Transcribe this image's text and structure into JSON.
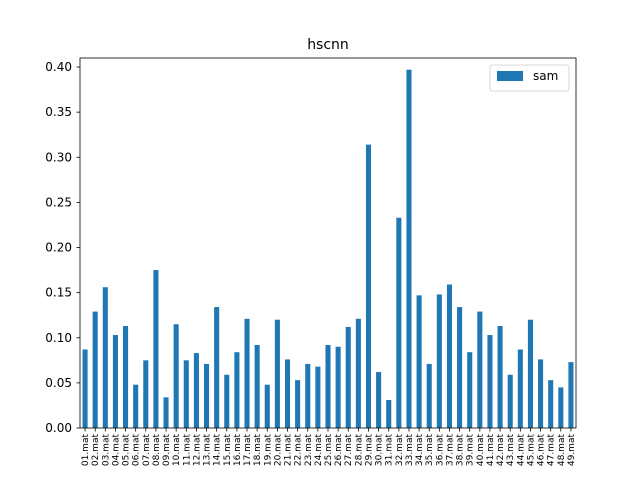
{
  "chart_data": {
    "type": "bar",
    "title": "hscnn",
    "xlabel": "",
    "ylabel": "",
    "ylim": [
      0,
      0.41
    ],
    "yticks": [
      0.0,
      0.05,
      0.1,
      0.15,
      0.2,
      0.25,
      0.3,
      0.35,
      0.4
    ],
    "ytick_labels": [
      "0.00",
      "0.05",
      "0.10",
      "0.15",
      "0.20",
      "0.25",
      "0.30",
      "0.35",
      "0.40"
    ],
    "grid": false,
    "legend_position": "top-right",
    "categories": [
      "01.mat",
      "02.mat",
      "03.mat",
      "04.mat",
      "05.mat",
      "06.mat",
      "07.mat",
      "08.mat",
      "09.mat",
      "10.mat",
      "11.mat",
      "12.mat",
      "13.mat",
      "14.mat",
      "15.mat",
      "16.mat",
      "17.mat",
      "18.mat",
      "19.mat",
      "20.mat",
      "21.mat",
      "22.mat",
      "23.mat",
      "24.mat",
      "25.mat",
      "26.mat",
      "27.mat",
      "28.mat",
      "29.mat",
      "30.mat",
      "31.mat",
      "32.mat",
      "33.mat",
      "34.mat",
      "35.mat",
      "36.mat",
      "37.mat",
      "38.mat",
      "39.mat",
      "40.mat",
      "41.mat",
      "42.mat",
      "43.mat",
      "44.mat",
      "45.mat",
      "46.mat",
      "47.mat",
      "48.mat",
      "49.mat"
    ],
    "series": [
      {
        "name": "sam",
        "color": "#1f77b4",
        "values": [
          0.087,
          0.129,
          0.156,
          0.103,
          0.113,
          0.048,
          0.075,
          0.175,
          0.034,
          0.115,
          0.075,
          0.083,
          0.071,
          0.134,
          0.059,
          0.084,
          0.121,
          0.092,
          0.048,
          0.12,
          0.076,
          0.053,
          0.071,
          0.068,
          0.092,
          0.09,
          0.112,
          0.121,
          0.314,
          0.062,
          0.031,
          0.233,
          0.397,
          0.147,
          0.071,
          0.148,
          0.159,
          0.134,
          0.084,
          0.129,
          0.103,
          0.113,
          0.059,
          0.087,
          0.12,
          0.076,
          0.053,
          0.045,
          0.073
        ]
      }
    ]
  }
}
